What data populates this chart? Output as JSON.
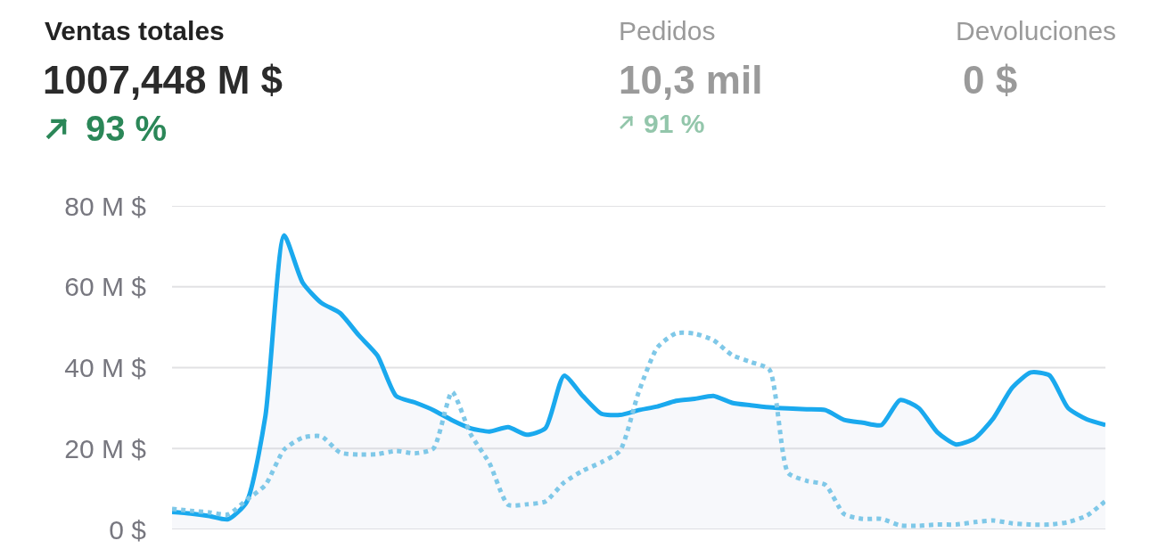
{
  "chart_data": {
    "type": "line",
    "annotations": [
      "Ventas totales",
      "1007,448 M $",
      "93 %",
      "Pedidos",
      "10,3 mil",
      "91 %",
      "Devoluciones",
      "0 $"
    ],
    "categories": [
      null,
      null,
      null,
      null,
      null,
      null,
      null,
      null,
      null,
      null,
      null,
      null,
      null,
      null,
      null,
      null,
      null,
      null,
      null,
      null,
      null,
      null,
      null,
      null,
      null,
      null,
      null,
      null,
      null,
      null,
      null,
      null,
      null,
      null,
      null,
      null,
      null,
      null,
      null,
      null,
      null,
      null,
      null,
      null,
      null,
      null,
      null,
      null,
      null,
      null,
      null
    ],
    "series": [
      {
        "type": "area",
        "color": "#1aa9ee",
        "values": [
          4.3,
          3.9,
          3.3,
          2.5,
          6.8,
          28,
          72.7,
          61,
          56,
          53.5,
          48,
          43,
          33,
          31.4,
          29.5,
          27,
          25,
          24.2,
          25.3,
          23.4,
          25,
          38,
          33,
          28.6,
          28.3,
          29.5,
          30.4,
          31.8,
          32.3,
          33,
          31.3,
          30.7,
          30.2,
          29.9,
          29.7,
          29.5,
          27.1,
          26.4,
          25.8,
          32,
          30,
          24,
          21,
          22.5,
          27.5,
          35,
          38.8,
          38.1,
          30,
          27.2,
          25.8
        ]
      },
      {
        "type": "line",
        "color": "#7fc8e8",
        "line_style": "dotted",
        "values": [
          5.1,
          4.6,
          4.2,
          3.7,
          7.3,
          11,
          19.7,
          22.7,
          23,
          19,
          18.5,
          18.6,
          19.4,
          18.8,
          20,
          34,
          23.5,
          16.4,
          6.1,
          6.2,
          6.9,
          11.6,
          14.5,
          16.6,
          19.5,
          34,
          45,
          48.5,
          48.4,
          46.8,
          43.1,
          41.4,
          39.5,
          14,
          12,
          11,
          3.8,
          2.6,
          2.6,
          1,
          0.9,
          1.2,
          1.2,
          1.8,
          2.2,
          1.5,
          1.2,
          1.2,
          1.8,
          3.4,
          7
        ]
      }
    ],
    "ylim": [
      0,
      80
    ],
    "yticks": [
      {
        "value": 0,
        "label": "0 $"
      },
      {
        "value": 20,
        "label": "20 M $"
      },
      {
        "value": 40,
        "label": "40 M $"
      },
      {
        "value": 60,
        "label": "60 M $"
      },
      {
        "value": 80,
        "label": "80 M $"
      }
    ],
    "grid": "y",
    "tick_labels": "y"
  }
}
